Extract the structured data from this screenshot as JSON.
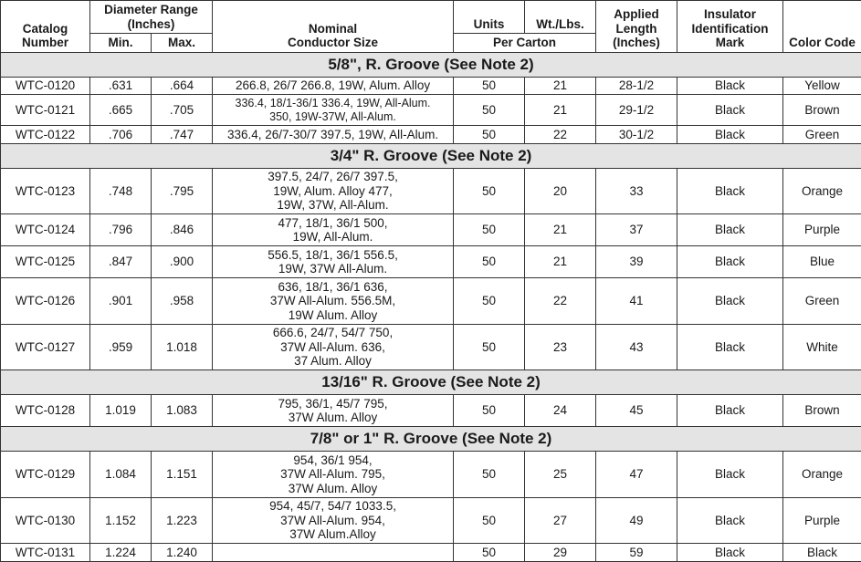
{
  "header": {
    "catalog_number": [
      "Catalog",
      "Number"
    ],
    "diameter_range": [
      "Diameter Range",
      "(Inches)"
    ],
    "min": "Min.",
    "max": "Max.",
    "conductor": [
      "Nominal",
      "Conductor Size"
    ],
    "units": "Units",
    "weight": "Wt./Lbs.",
    "per_carton": "Per Carton",
    "length": [
      "Applied",
      "Length",
      "(Inches)"
    ],
    "mark": [
      "Insulator",
      "Identification",
      "Mark"
    ],
    "color": "Color Code"
  },
  "sections": [
    {
      "title": "5/8\", R. Groove (See Note 2)",
      "rows": [
        [
          "WTC-0120",
          ".631",
          ".664",
          [
            "266.8, 26/7 266.8, 19W, Alum. Alloy"
          ],
          "50",
          "21",
          "28-1/2",
          "Black",
          "Yellow"
        ],
        [
          "WTC-0121",
          ".665",
          ".705",
          [
            "336.4, 18/1-36/1 336.4, 19W, All-Alum.",
            "350, 19W-37W, All-Alum."
          ],
          "50",
          "21",
          "29-1/2",
          "Black",
          "Brown"
        ],
        [
          "WTC-0122",
          ".706",
          ".747",
          [
            "336.4, 26/7-30/7 397.5, 19W, All-Alum."
          ],
          "50",
          "22",
          "30-1/2",
          "Black",
          "Green"
        ]
      ]
    },
    {
      "title": "3/4\" R. Groove (See Note 2)",
      "rows": [
        [
          "WTC-0123",
          ".748",
          ".795",
          [
            "397.5, 24/7, 26/7 397.5,",
            "19W, Alum. Alloy 477,",
            "19W, 37W, All-Alum."
          ],
          "50",
          "20",
          "33",
          "Black",
          "Orange"
        ],
        [
          "WTC-0124",
          ".796",
          ".846",
          [
            "477, 18/1, 36/1 500,",
            "19W, All-Alum."
          ],
          "50",
          "21",
          "37",
          "Black",
          "Purple"
        ],
        [
          "WTC-0125",
          ".847",
          ".900",
          [
            "556.5, 18/1, 36/1 556.5,",
            "19W, 37W All-Alum."
          ],
          "50",
          "21",
          "39",
          "Black",
          "Blue"
        ],
        [
          "WTC-0126",
          ".901",
          ".958",
          [
            "636, 18/1, 36/1 636,",
            "37W All-Alum. 556.5M,",
            "19W Alum. Alloy"
          ],
          "50",
          "22",
          "41",
          "Black",
          "Green"
        ],
        [
          "WTC-0127",
          ".959",
          "1.018",
          [
            "666.6, 24/7, 54/7 750,",
            "37W All-Alum. 636,",
            "37 Alum. Alloy"
          ],
          "50",
          "23",
          "43",
          "Black",
          "White"
        ]
      ]
    },
    {
      "title": "13/16\" R. Groove (See Note 2)",
      "rows": [
        [
          "WTC-0128",
          "1.019",
          "1.083",
          [
            "795, 36/1, 45/7 795,",
            "37W Alum. Alloy"
          ],
          "50",
          "24",
          "45",
          "Black",
          "Brown"
        ]
      ]
    },
    {
      "title": "7/8\" or 1\" R. Groove (See Note 2)",
      "rows": [
        [
          "WTC-0129",
          "1.084",
          "1.151",
          [
            "954, 36/1 954,",
            "37W All-Alum. 795,",
            "37W Alum. Alloy"
          ],
          "50",
          "25",
          "47",
          "Black",
          "Orange"
        ],
        [
          "WTC-0130",
          "1.152",
          "1.223",
          [
            "954, 45/7, 54/7 1033.5,",
            "37W All-Alum. 954,",
            "37W Alum.Alloy"
          ],
          "50",
          "27",
          "49",
          "Black",
          "Purple"
        ],
        [
          "WTC-0131",
          "1.224",
          "1.240",
          [
            ""
          ],
          "50",
          "29",
          "59",
          "Black",
          "Black"
        ]
      ]
    }
  ]
}
